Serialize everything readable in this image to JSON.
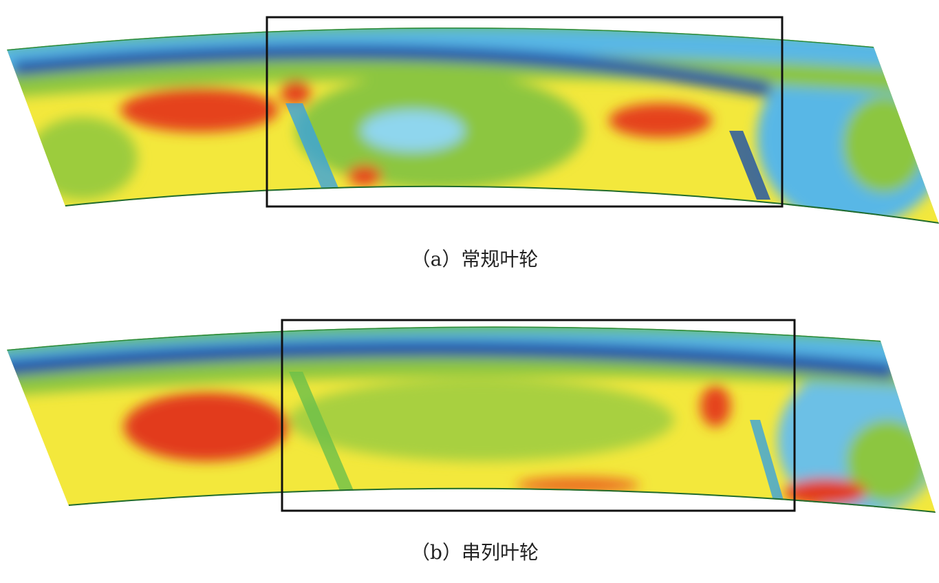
{
  "captions": [
    "（a）常规叶轮",
    "（b）串列叶轮"
  ]
}
